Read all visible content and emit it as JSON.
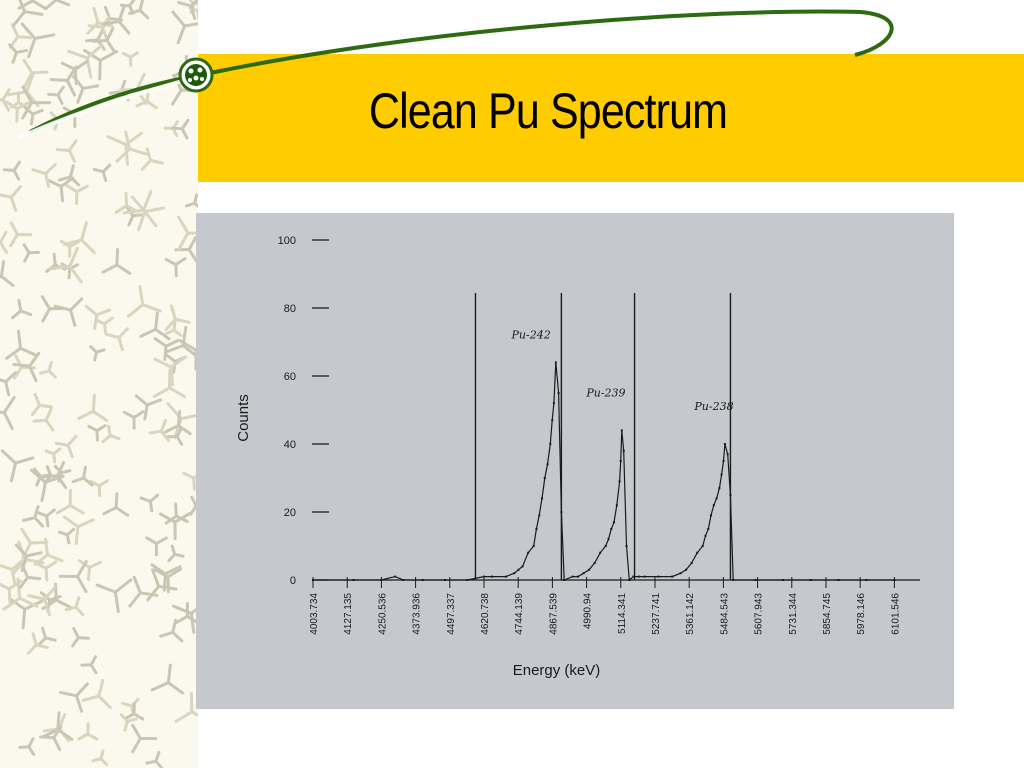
{
  "slide": {
    "title": "Clean Pu Spectrum"
  },
  "colors": {
    "title_band": "#ffcc00",
    "swoosh": "#2d6a10",
    "scan_background": "#c5c9cd"
  },
  "chart_data": {
    "type": "line",
    "xlabel": "Energy (keV)",
    "ylabel": "Counts",
    "ylim": [
      0,
      100
    ],
    "yticks": [
      0,
      20,
      40,
      60,
      80,
      100
    ],
    "xticks": [
      "4003.734",
      "4127.135",
      "4250.536",
      "4373.936",
      "4497.337",
      "4620.738",
      "4744.139",
      "4867.539",
      "4990.94",
      "5114.341",
      "5237.741",
      "5361.142",
      "5484.543",
      "5607.943",
      "5731.344",
      "5854.745",
      "5978.146",
      "6101.546"
    ],
    "xlim": [
      4003.734,
      6194.0
    ],
    "region_markers_keV": [
      4590,
      4900,
      5164,
      5510
    ],
    "annotations": [
      {
        "text": "Pu-242",
        "x": 4720,
        "y": 71
      },
      {
        "text": "Pu-239",
        "x": 4990,
        "y": 54
      },
      {
        "text": "Pu-238",
        "x": 5380,
        "y": 50
      }
    ],
    "series": [
      {
        "x": [
          4003.734,
          4150,
          4250,
          4300,
          4330,
          4400,
          4480,
          4560,
          4620,
          4650,
          4700,
          4730,
          4745,
          4760,
          4780,
          4800,
          4810,
          4820,
          4830,
          4840,
          4850,
          4860,
          4867,
          4873,
          4880,
          4890,
          4900,
          4910,
          4940,
          4960,
          4980,
          5000,
          5020,
          5040,
          5060,
          5070,
          5080,
          5090,
          5100,
          5110,
          5114,
          5118,
          5125,
          5135,
          5145,
          5160,
          5180,
          5200,
          5250,
          5300,
          5330,
          5350,
          5370,
          5390,
          5410,
          5420,
          5430,
          5440,
          5450,
          5460,
          5470,
          5478,
          5485,
          5490,
          5500,
          5510,
          5520,
          5600,
          5700,
          5800,
          5900,
          6000,
          6101.546
        ],
        "values": [
          0,
          0,
          0,
          1,
          0,
          0,
          0,
          0,
          1,
          1,
          1,
          2,
          3,
          4,
          8,
          10,
          15,
          19,
          24,
          30,
          34,
          40,
          47,
          52,
          64,
          55,
          20,
          0,
          1,
          1,
          2,
          3,
          5,
          8,
          10,
          12,
          15,
          17,
          22,
          29,
          35,
          44,
          38,
          10,
          0,
          1,
          1,
          1,
          1,
          1,
          2,
          3,
          5,
          8,
          10,
          13,
          15,
          19,
          22,
          24,
          27,
          31,
          35,
          40,
          37,
          25,
          0,
          0,
          0,
          0,
          0,
          0,
          0
        ]
      }
    ]
  }
}
